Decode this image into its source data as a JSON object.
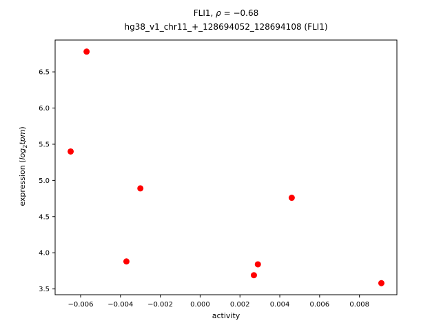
{
  "title": {
    "line1_prefix": "FLI1, ",
    "rho": "ρ",
    "line1_suffix": " = −0.68",
    "line2": "hg38_v1_chr11_+_128694052_128694108 (FLI1)"
  },
  "axes": {
    "xlabel": "activity",
    "ylabel_prefix": "expression (",
    "ylabel_log": "log",
    "ylabel_sub": "2",
    "ylabel_tpm": "tpm",
    "ylabel_suffix": ")"
  },
  "chart_data": {
    "type": "scatter",
    "title": "FLI1, ρ = −0.68",
    "subtitle": "hg38_v1_chr11_+_128694052_128694108 (FLI1)",
    "xlabel": "activity",
    "ylabel": "expression (log2 tpm)",
    "x": [
      -0.0065,
      -0.0057,
      -0.0037,
      -0.003,
      0.0027,
      0.0029,
      0.0046,
      0.0091
    ],
    "y": [
      5.4,
      6.78,
      3.88,
      4.89,
      3.69,
      3.84,
      4.76,
      3.58
    ],
    "xlim": [
      -0.00728,
      0.00988
    ],
    "ylim": [
      3.42,
      6.94
    ],
    "xticks": [
      -0.006,
      -0.004,
      -0.002,
      0.0,
      0.002,
      0.004,
      0.006,
      0.008
    ],
    "yticks": [
      3.5,
      4.0,
      4.5,
      5.0,
      5.5,
      6.0,
      6.5
    ],
    "x_tick_decimals": 3,
    "y_tick_decimals": 1,
    "marker_color": "#ff0000",
    "axis_color": "#000000",
    "grid": false,
    "legend": null
  }
}
